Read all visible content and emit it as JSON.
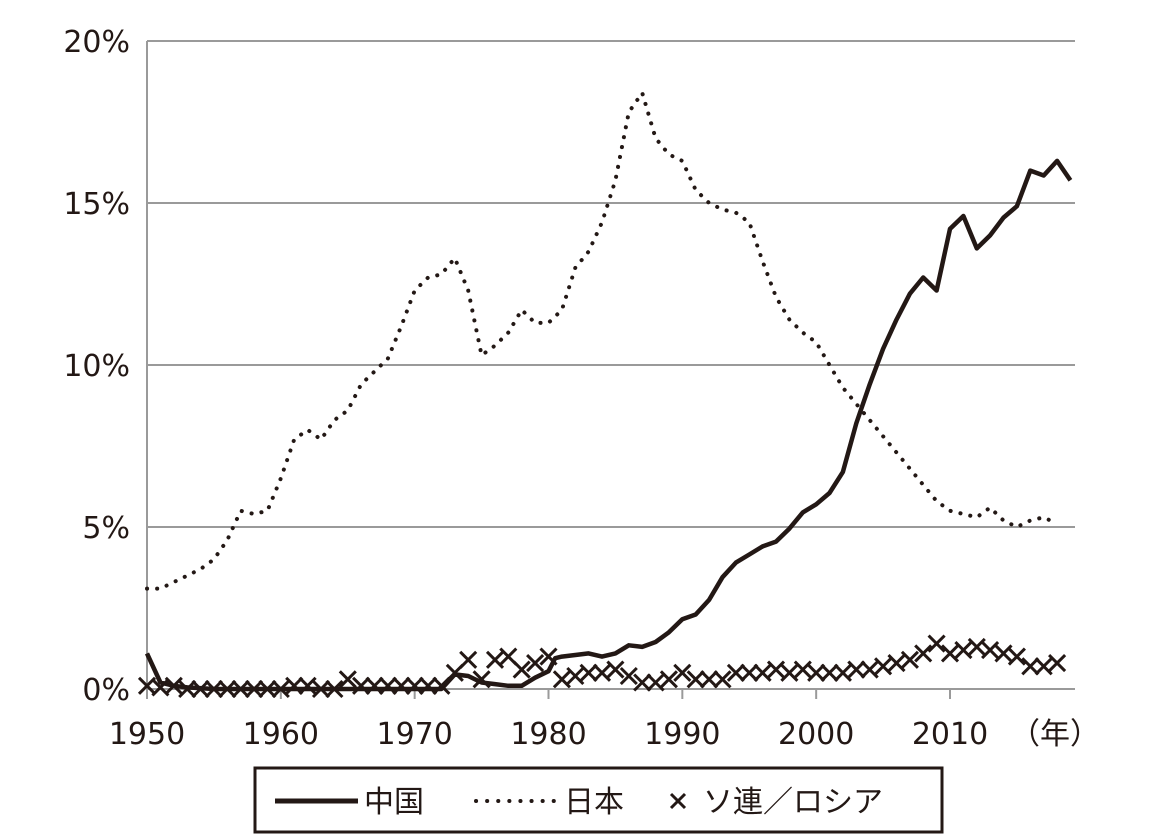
{
  "chart_data": {
    "type": "line",
    "title": "",
    "xlabel": "",
    "ylabel": "",
    "x_unit_label": "（年）",
    "x_ticks": [
      "1950",
      "1960",
      "1970",
      "1980",
      "1990",
      "2000",
      "2010"
    ],
    "y_ticks": [
      "0%",
      "5%",
      "10%",
      "15%",
      "20%"
    ],
    "xlim": [
      1950,
      2018
    ],
    "ylim": [
      0,
      20
    ],
    "grid": "horizontal",
    "legend_position": "bottom",
    "colors": {
      "ink": "#231815",
      "grid": "#9a9a9a"
    },
    "series": [
      {
        "name": "中国",
        "style": "solid",
        "points": [
          [
            1950,
            1.1
          ],
          [
            1951,
            0.2
          ],
          [
            1952,
            0.1
          ],
          [
            1953,
            0.05
          ],
          [
            1955,
            0.0
          ],
          [
            1960,
            0.0
          ],
          [
            1965,
            0.0
          ],
          [
            1970,
            0.0
          ],
          [
            1972,
            0.0
          ],
          [
            1973,
            0.45
          ],
          [
            1974,
            0.4
          ],
          [
            1975,
            0.2
          ],
          [
            1976,
            0.15
          ],
          [
            1977,
            0.1
          ],
          [
            1978,
            0.1
          ],
          [
            1979,
            0.35
          ],
          [
            1980,
            0.55
          ],
          [
            1980.5,
            0.95
          ],
          [
            1981,
            1.0
          ],
          [
            1982,
            1.05
          ],
          [
            1983,
            1.1
          ],
          [
            1984,
            1.0
          ],
          [
            1985,
            1.1
          ],
          [
            1986,
            1.35
          ],
          [
            1987,
            1.3
          ],
          [
            1988,
            1.45
          ],
          [
            1989,
            1.75
          ],
          [
            1990,
            2.15
          ],
          [
            1991,
            2.3
          ],
          [
            1992,
            2.75
          ],
          [
            1993,
            3.45
          ],
          [
            1994,
            3.9
          ],
          [
            1995,
            4.15
          ],
          [
            1996,
            4.4
          ],
          [
            1997,
            4.55
          ],
          [
            1998,
            4.95
          ],
          [
            1999,
            5.45
          ],
          [
            2000,
            5.7
          ],
          [
            2001,
            6.05
          ],
          [
            2002,
            6.7
          ],
          [
            2003,
            8.2
          ],
          [
            2004,
            9.4
          ],
          [
            2005,
            10.5
          ],
          [
            2006,
            11.4
          ],
          [
            2007,
            12.2
          ],
          [
            2008,
            12.7
          ],
          [
            2009,
            12.3
          ],
          [
            2010,
            14.2
          ],
          [
            2011,
            14.6
          ],
          [
            2012,
            13.6
          ],
          [
            2013,
            14.0
          ],
          [
            2014,
            14.55
          ],
          [
            2015,
            14.9
          ],
          [
            2016,
            16.0
          ],
          [
            2017,
            15.85
          ],
          [
            2018,
            16.3
          ],
          [
            2019,
            15.7
          ]
        ]
      },
      {
        "name": "日本",
        "style": "dotted",
        "points": [
          [
            1950,
            3.1
          ],
          [
            1951,
            3.1
          ],
          [
            1952,
            3.3
          ],
          [
            1953,
            3.5
          ],
          [
            1954,
            3.7
          ],
          [
            1955,
            4.0
          ],
          [
            1956,
            4.6
          ],
          [
            1957,
            5.5
          ],
          [
            1958,
            5.4
          ],
          [
            1959,
            5.5
          ],
          [
            1960,
            6.5
          ],
          [
            1961,
            7.7
          ],
          [
            1962,
            8.0
          ],
          [
            1963,
            7.7
          ],
          [
            1964,
            8.3
          ],
          [
            1965,
            8.6
          ],
          [
            1966,
            9.4
          ],
          [
            1967,
            9.8
          ],
          [
            1968,
            10.2
          ],
          [
            1969,
            11.2
          ],
          [
            1970,
            12.3
          ],
          [
            1971,
            12.7
          ],
          [
            1972,
            12.8
          ],
          [
            1973,
            13.3
          ],
          [
            1974,
            12.3
          ],
          [
            1975,
            10.3
          ],
          [
            1976,
            10.6
          ],
          [
            1977,
            11.0
          ],
          [
            1978,
            11.7
          ],
          [
            1979,
            11.3
          ],
          [
            1980,
            11.3
          ],
          [
            1981,
            11.7
          ],
          [
            1982,
            13.0
          ],
          [
            1983,
            13.5
          ],
          [
            1984,
            14.4
          ],
          [
            1985,
            15.7
          ],
          [
            1986,
            17.8
          ],
          [
            1987,
            18.4
          ],
          [
            1988,
            17.0
          ],
          [
            1989,
            16.5
          ],
          [
            1990,
            16.3
          ],
          [
            1991,
            15.4
          ],
          [
            1992,
            15.0
          ],
          [
            1993,
            14.8
          ],
          [
            1994,
            14.7
          ],
          [
            1995,
            14.4
          ],
          [
            1996,
            13.2
          ],
          [
            1997,
            12.1
          ],
          [
            1998,
            11.4
          ],
          [
            1999,
            11.0
          ],
          [
            2000,
            10.7
          ],
          [
            2001,
            10.0
          ],
          [
            2002,
            9.3
          ],
          [
            2003,
            8.8
          ],
          [
            2004,
            8.3
          ],
          [
            2005,
            7.8
          ],
          [
            2006,
            7.3
          ],
          [
            2007,
            6.8
          ],
          [
            2008,
            6.3
          ],
          [
            2009,
            5.8
          ],
          [
            2010,
            5.5
          ],
          [
            2011,
            5.4
          ],
          [
            2012,
            5.3
          ],
          [
            2013,
            5.6
          ],
          [
            2014,
            5.2
          ],
          [
            2015,
            5.0
          ],
          [
            2016,
            5.2
          ],
          [
            2017,
            5.3
          ],
          [
            2018,
            5.1
          ]
        ]
      },
      {
        "name": "ソ連／ロシア",
        "style": "x-markers",
        "points": [
          [
            1950,
            0.1
          ],
          [
            1951,
            0.05
          ],
          [
            1952,
            0.1
          ],
          [
            1953,
            0.0
          ],
          [
            1954,
            0.0
          ],
          [
            1955,
            0.0
          ],
          [
            1956,
            0.0
          ],
          [
            1957,
            0.0
          ],
          [
            1958,
            0.0
          ],
          [
            1959,
            0.0
          ],
          [
            1960,
            0.0
          ],
          [
            1961,
            0.1
          ],
          [
            1962,
            0.1
          ],
          [
            1963,
            0.0
          ],
          [
            1964,
            0.0
          ],
          [
            1965,
            0.3
          ],
          [
            1966,
            0.1
          ],
          [
            1967,
            0.1
          ],
          [
            1968,
            0.1
          ],
          [
            1969,
            0.1
          ],
          [
            1970,
            0.1
          ],
          [
            1971,
            0.1
          ],
          [
            1972,
            0.1
          ],
          [
            1973,
            0.5
          ],
          [
            1974,
            0.9
          ],
          [
            1975,
            0.3
          ],
          [
            1976,
            0.9
          ],
          [
            1977,
            1.0
          ],
          [
            1978,
            0.6
          ],
          [
            1979,
            0.8
          ],
          [
            1980,
            1.0
          ],
          [
            1981,
            0.3
          ],
          [
            1982,
            0.4
          ],
          [
            1983,
            0.5
          ],
          [
            1984,
            0.5
          ],
          [
            1985,
            0.6
          ],
          [
            1986,
            0.4
          ],
          [
            1987,
            0.2
          ],
          [
            1988,
            0.2
          ],
          [
            1989,
            0.3
          ],
          [
            1990,
            0.5
          ],
          [
            1991,
            0.3
          ],
          [
            1992,
            0.3
          ],
          [
            1993,
            0.3
          ],
          [
            1994,
            0.5
          ],
          [
            1995,
            0.5
          ],
          [
            1996,
            0.5
          ],
          [
            1997,
            0.6
          ],
          [
            1998,
            0.5
          ],
          [
            1999,
            0.6
          ],
          [
            2000,
            0.5
          ],
          [
            2001,
            0.5
          ],
          [
            2002,
            0.5
          ],
          [
            2003,
            0.6
          ],
          [
            2004,
            0.6
          ],
          [
            2005,
            0.7
          ],
          [
            2006,
            0.8
          ],
          [
            2007,
            0.9
          ],
          [
            2008,
            1.1
          ],
          [
            2009,
            1.4
          ],
          [
            2010,
            1.1
          ],
          [
            2011,
            1.2
          ],
          [
            2012,
            1.3
          ],
          [
            2013,
            1.2
          ],
          [
            2014,
            1.1
          ],
          [
            2015,
            1.0
          ],
          [
            2016,
            0.7
          ],
          [
            2017,
            0.7
          ],
          [
            2018,
            0.8
          ]
        ]
      }
    ]
  }
}
